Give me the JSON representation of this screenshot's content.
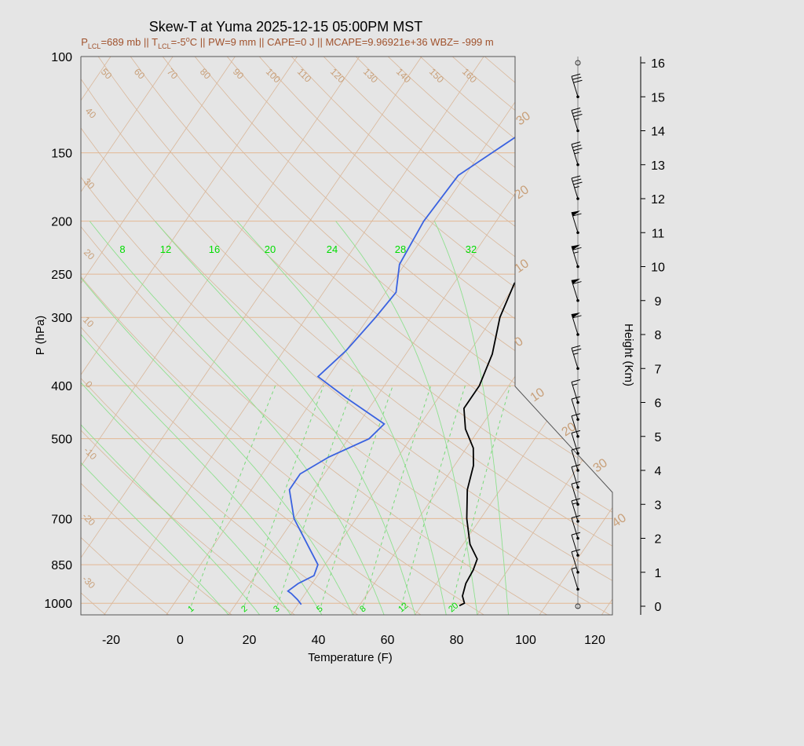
{
  "title": "Skew-T at Yuma 2025-12-15 05:00PM MST",
  "subtitle": {
    "p_prefix": "P",
    "lcl_sub": "LCL",
    "p_value": "=689 mb || ",
    "t_prefix": "T",
    "t_value": "=-5",
    "degc": "°C",
    "rest": " || PW=9 mm || CAPE=0 J || MCAPE=9.96921e+36 WBZ= -999 m"
  },
  "chart_data": {
    "type": "line",
    "title": "Skew-T at Yuma 2025-12-15 05:00PM MST",
    "xlabel": "Temperature (F)",
    "ylabel": "P (hPa)",
    "y2label": "Height (Km)",
    "x_ticks": [
      -20,
      0,
      20,
      40,
      60,
      80,
      100,
      120
    ],
    "p_ticks": [
      100,
      150,
      200,
      250,
      300,
      400,
      500,
      700,
      850,
      1000
    ],
    "height_ticks": [
      0,
      1,
      2,
      3,
      4,
      5,
      6,
      7,
      8,
      9,
      10,
      11,
      12,
      13,
      14,
      15,
      16
    ],
    "isotherm_labels_left": [
      "50",
      "60",
      "70",
      "80",
      "90",
      "100",
      "110",
      "120",
      "130",
      "140",
      "150",
      "160"
    ],
    "isotherm_labels_side": [
      "40",
      "30",
      "20",
      "10",
      "0",
      "-10",
      "-20",
      "-30"
    ],
    "isotherm_labels_right": [
      "30",
      "20",
      "10",
      "0",
      "10",
      "20",
      "30",
      "40"
    ],
    "mixing_ratio_top": [
      "8",
      "12",
      "16",
      "20",
      "24",
      "28",
      "32"
    ],
    "mixing_ratio_bottom": [
      "1",
      "2",
      "3",
      "5",
      "8",
      "12",
      "20"
    ],
    "series": [
      {
        "name": "temperature",
        "color": "#000000",
        "points": [
          {
            "p": 100,
            "t": 44.5
          },
          {
            "p": 150,
            "t": 43.6
          },
          {
            "p": 170,
            "t": 43
          },
          {
            "p": 200,
            "t": 38
          },
          {
            "p": 230,
            "t": 34.5
          },
          {
            "p": 260,
            "t": 31.5
          },
          {
            "p": 300,
            "t": 34
          },
          {
            "p": 350,
            "t": 39
          },
          {
            "p": 400,
            "t": 41.5
          },
          {
            "p": 440,
            "t": 41.5
          },
          {
            "p": 480,
            "t": 46
          },
          {
            "p": 520,
            "t": 52
          },
          {
            "p": 560,
            "t": 55.5
          },
          {
            "p": 620,
            "t": 58.5
          },
          {
            "p": 700,
            "t": 64
          },
          {
            "p": 780,
            "t": 70
          },
          {
            "p": 830,
            "t": 75
          },
          {
            "p": 870,
            "t": 76
          },
          {
            "p": 920,
            "t": 76.5
          },
          {
            "p": 970,
            "t": 78
          },
          {
            "p": 1000,
            "t": 80
          },
          {
            "p": 1010,
            "t": 79
          }
        ]
      },
      {
        "name": "dewpoint",
        "color": "#3a62e0",
        "points": [
          {
            "p": 100,
            "t": 22
          },
          {
            "p": 165,
            "t": -6
          },
          {
            "p": 200,
            "t": -7
          },
          {
            "p": 240,
            "t": -5.5
          },
          {
            "p": 270,
            "t": -1
          },
          {
            "p": 300,
            "t": -2
          },
          {
            "p": 345,
            "t": -4
          },
          {
            "p": 385,
            "t": -7
          },
          {
            "p": 420,
            "t": 5
          },
          {
            "p": 470,
            "t": 21.5
          },
          {
            "p": 500,
            "t": 20
          },
          {
            "p": 540,
            "t": 12
          },
          {
            "p": 580,
            "t": 7
          },
          {
            "p": 620,
            "t": 7
          },
          {
            "p": 700,
            "t": 14
          },
          {
            "p": 800,
            "t": 25
          },
          {
            "p": 850,
            "t": 30
          },
          {
            "p": 890,
            "t": 31
          },
          {
            "p": 920,
            "t": 28
          },
          {
            "p": 950,
            "t": 26.5
          },
          {
            "p": 960,
            "t": 28
          },
          {
            "p": 985,
            "t": 31
          },
          {
            "p": 1005,
            "t": 33
          }
        ]
      }
    ],
    "wind_barbs": [
      {
        "h": 0,
        "speed": 0
      },
      {
        "h": 0.5,
        "speed": 5
      },
      {
        "h": 1,
        "speed": 10
      },
      {
        "h": 1.5,
        "speed": 10
      },
      {
        "h": 2,
        "speed": 10
      },
      {
        "h": 2.5,
        "speed": 15
      },
      {
        "h": 3,
        "speed": 10
      },
      {
        "h": 3.5,
        "speed": 10
      },
      {
        "h": 4,
        "speed": 10
      },
      {
        "h": 4.5,
        "speed": 10
      },
      {
        "h": 5,
        "speed": 10
      },
      {
        "h": 5.5,
        "speed": 10
      },
      {
        "h": 6,
        "speed": 15
      },
      {
        "h": 7,
        "speed": 25
      },
      {
        "h": 8,
        "speed": 60
      },
      {
        "h": 9,
        "speed": 60
      },
      {
        "h": 10,
        "speed": 65
      },
      {
        "h": 11,
        "speed": 60
      },
      {
        "h": 12,
        "speed": 35
      },
      {
        "h": 13,
        "speed": 35
      },
      {
        "h": 14,
        "speed": 35
      },
      {
        "h": 15,
        "speed": 30
      },
      {
        "h": 16,
        "speed": 0
      }
    ]
  }
}
